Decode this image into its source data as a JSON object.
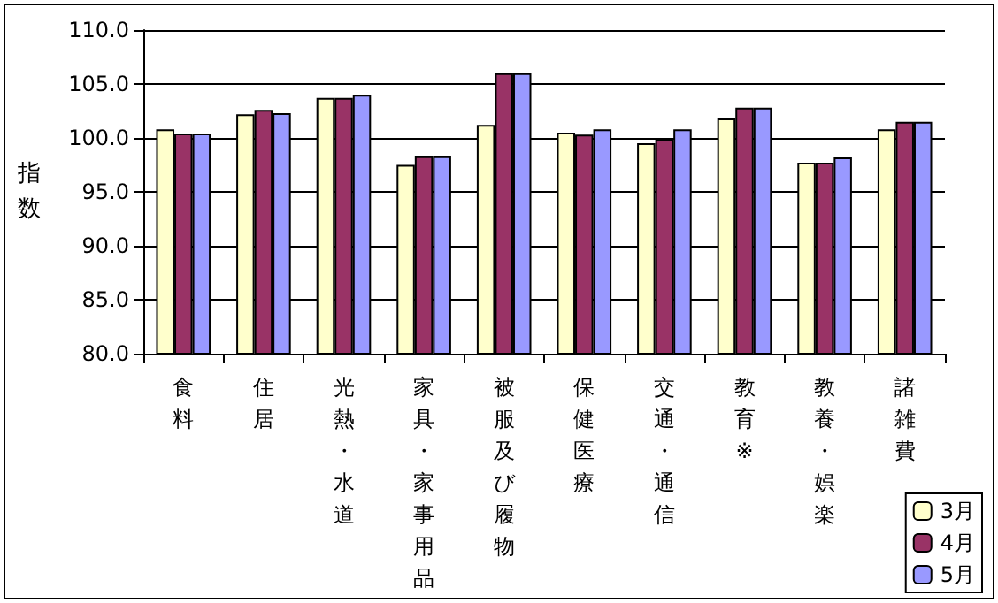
{
  "chart_data": {
    "type": "bar",
    "ylabel": "指数",
    "categories": [
      "食料",
      "住居",
      "光熱・水道",
      "家具・家事用品",
      "被服及び履物",
      "保健医療",
      "交通・通信",
      "教育※",
      "教養・娯楽",
      "諸雑費"
    ],
    "series": [
      {
        "name": "3月",
        "color": "#ffffcc",
        "values": [
          100.8,
          102.2,
          103.7,
          97.5,
          101.2,
          100.5,
          99.5,
          101.8,
          97.7,
          100.8
        ]
      },
      {
        "name": "4月",
        "color": "#993366",
        "values": [
          100.4,
          102.6,
          103.7,
          98.3,
          106.0,
          100.3,
          99.9,
          102.8,
          97.7,
          101.5
        ]
      },
      {
        "name": "5月",
        "color": "#9999ff",
        "values": [
          100.4,
          102.3,
          104.0,
          98.3,
          106.0,
          100.8,
          100.8,
          102.8,
          98.2,
          101.5
        ]
      }
    ],
    "ylim": [
      80,
      110
    ],
    "yticks": [
      {
        "value": 80,
        "label": "80.0"
      },
      {
        "value": 85,
        "label": "85.0"
      },
      {
        "value": 90,
        "label": "90.0"
      },
      {
        "value": 95,
        "label": "95.0"
      },
      {
        "value": 100,
        "label": "100.0"
      },
      {
        "value": 105,
        "label": "105.0"
      },
      {
        "value": 110,
        "label": "110.0"
      }
    ],
    "grid": "y",
    "legend": "bottom right"
  }
}
